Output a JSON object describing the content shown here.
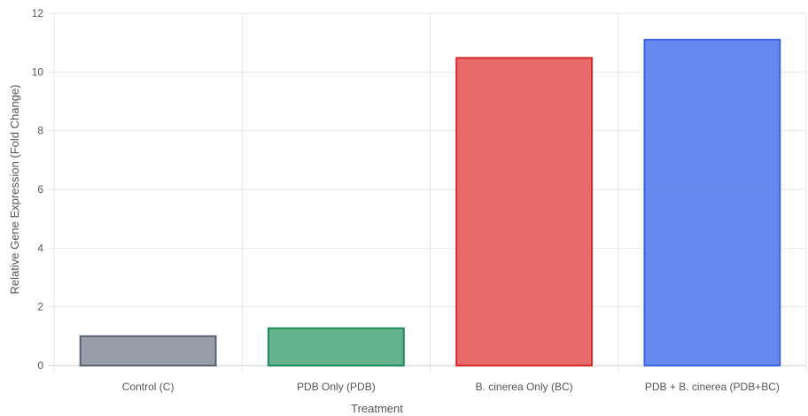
{
  "chart_data": {
    "type": "bar",
    "title": "",
    "xlabel": "Treatment",
    "ylabel": "Relative Gene Expression (Fold Change)",
    "categories": [
      "Control (C)",
      "PDB Only (PDB)",
      "B. cinerea Only (BC)",
      "PDB + B. cinerea (PDB+BC)"
    ],
    "values": [
      1.0,
      1.27,
      10.48,
      11.1
    ],
    "ylim": [
      0,
      12
    ],
    "yticks": [
      0,
      2,
      4,
      6,
      8,
      10,
      12
    ],
    "grid": true,
    "legend": "none",
    "colors": {
      "fills": [
        "#8b929e",
        "#4fa97c",
        "#e65555",
        "#5079ec"
      ],
      "borders": [
        "#5b6270",
        "#1f8a5b",
        "#d42a2a",
        "#3c63e0"
      ]
    }
  }
}
